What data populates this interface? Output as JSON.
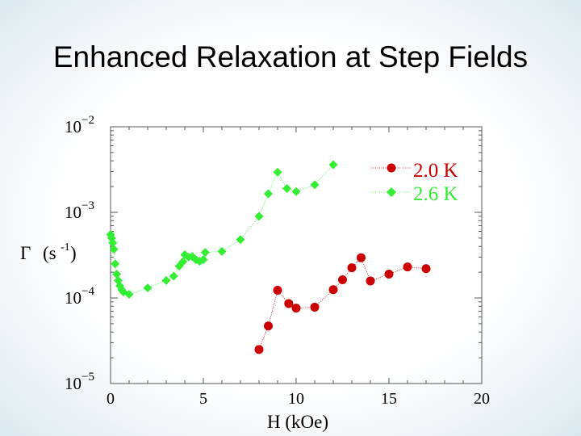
{
  "slide": {
    "title": "Enhanced Relaxation at Step Fields"
  },
  "chart_data": {
    "type": "scatter",
    "title": "Enhanced Relaxation at Step Fields",
    "xlabel": "H (kOe)",
    "ylabel_main": "Γ",
    "ylabel_unit": "(s",
    "ylabel_exp": "-1",
    "ylabel_close": ")",
    "xlim": [
      0,
      20
    ],
    "ylim_log10": [
      -5,
      -2
    ],
    "yscale": "log",
    "x_ticks": [
      0,
      5,
      10,
      15,
      20
    ],
    "y_ticks": [
      {
        "exp": -5,
        "base": "10",
        "sup": "−5"
      },
      {
        "exp": -4,
        "base": "10",
        "sup": "−4"
      },
      {
        "exp": -3,
        "base": "10",
        "sup": "−3"
      },
      {
        "exp": -2,
        "base": "10",
        "sup": "−2"
      }
    ],
    "grid": false,
    "legend_position": "top-right",
    "series": [
      {
        "name": "2.0 K",
        "marker": "circle",
        "color": "#cc0000",
        "x": [
          8.0,
          8.5,
          9.0,
          9.6,
          10.0,
          11.0,
          12.0,
          12.5,
          13.0,
          13.5,
          14.0,
          15.0,
          16.0,
          17.0
        ],
        "y": [
          2.5e-05,
          4.7e-05,
          0.000123,
          8.6e-05,
          7.6e-05,
          7.8e-05,
          0.000125,
          0.000163,
          0.000225,
          0.000295,
          0.000158,
          0.00019,
          0.00023,
          0.00022
        ]
      },
      {
        "name": "2.6 K",
        "marker": "diamond",
        "color": "#33ee33",
        "x": [
          0.0,
          0.06,
          0.12,
          0.18,
          0.25,
          0.33,
          0.41,
          0.5,
          0.6,
          0.7,
          1.0,
          2.0,
          3.0,
          3.4,
          3.7,
          3.9,
          4.0,
          4.2,
          4.4,
          4.6,
          4.8,
          5.0,
          5.1,
          6.0,
          7.0,
          8.0,
          8.5,
          9.0,
          9.5,
          10.0,
          11.0,
          12.0
        ],
        "y": [
          0.00055,
          0.0005,
          0.00044,
          0.00037,
          0.00025,
          0.00019,
          0.00016,
          0.000138,
          0.000125,
          0.000117,
          0.00011,
          0.000131,
          0.00016,
          0.00018,
          0.000235,
          0.000265,
          0.00032,
          0.0003,
          0.000305,
          0.00028,
          0.000268,
          0.00028,
          0.00034,
          0.00035,
          0.00048,
          0.0009,
          0.00165,
          0.00295,
          0.0019,
          0.00175,
          0.0021,
          0.0036
        ]
      }
    ]
  }
}
